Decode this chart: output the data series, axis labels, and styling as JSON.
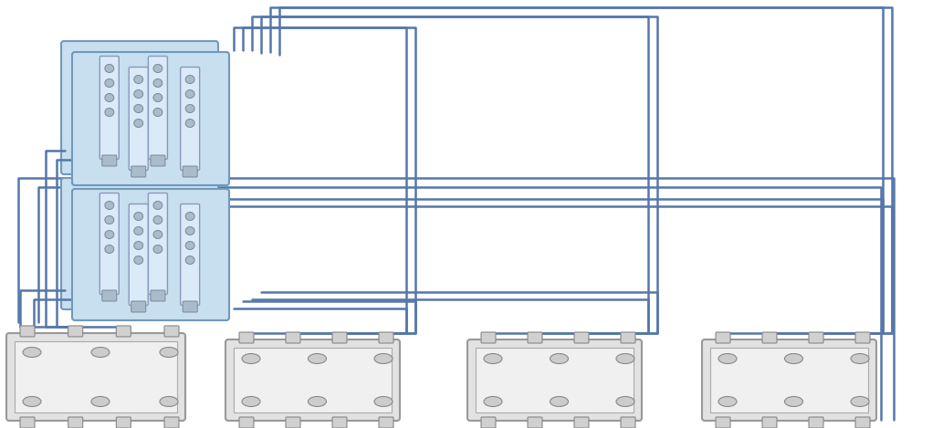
{
  "bg": "#ffffff",
  "ctrl_fill": "#c8dff0",
  "ctrl_edge": "#7099bb",
  "hba_fill": "#daeaf8",
  "hba_edge": "#8899bb",
  "port_fill": "#aabbcc",
  "port_edge": "#778899",
  "shelf_fill": "#e2e2e2",
  "shelf_edge": "#999999",
  "shelf_inner": "#f0f0f0",
  "lc": "#5577aa",
  "lw": 1.8,
  "IH": 469,
  "IW": 1033,
  "clusters": [
    {
      "il": 82,
      "it": 60,
      "ir": 248,
      "ib": 200
    },
    {
      "il": 82,
      "it": 210,
      "ir": 248,
      "ib": 348
    }
  ],
  "shelves": [
    {
      "il": 10,
      "it": 368,
      "ir": 200,
      "ib": 458
    },
    {
      "il": 250,
      "it": 375,
      "ir": 435,
      "ib": 458
    },
    {
      "il": 515,
      "it": 375,
      "ir": 700,
      "ib": 458
    },
    {
      "il": 772,
      "it": 375,
      "ir": 957,
      "ib": 458
    }
  ]
}
